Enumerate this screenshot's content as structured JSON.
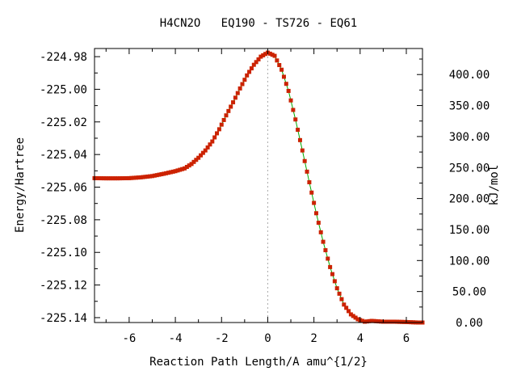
{
  "chart_data": {
    "type": "line",
    "title": "H4CN2O   EQ190 - TS726 - EQ61",
    "xlabel": "Reaction Path Length/A amu^{1/2}",
    "ylabel": "Energy/Hartree",
    "y2label": "kJ/mol",
    "xlim": [
      -7.5,
      6.7
    ],
    "ylim": [
      -225.143,
      -224.975
    ],
    "y2lim": [
      0,
      442
    ],
    "xticks": [
      -6,
      -4,
      -2,
      0,
      2,
      4,
      6
    ],
    "xtick_labels": [
      "-6",
      "-4",
      "-2",
      "0",
      "2",
      "4",
      "6"
    ],
    "yticks": [
      -224.98,
      -225.0,
      -225.02,
      -225.04,
      -225.06,
      -225.08,
      -225.1,
      -225.12,
      -225.14
    ],
    "ytick_labels": [
      "-224.98",
      "-225.00",
      "-225.02",
      "-225.04",
      "-225.06",
      "-225.08",
      "-225.10",
      "-225.12",
      "-225.14"
    ],
    "y2ticks": [
      0,
      50,
      100,
      150,
      200,
      250,
      300,
      350,
      400
    ],
    "y2tick_labels": [
      "0.00",
      "50.00",
      "100.00",
      "150.00",
      "200.00",
      "250.00",
      "300.00",
      "350.00",
      "400.00"
    ],
    "ts_marker_x": 0,
    "grid": false,
    "colors": {
      "line": "#00aa00",
      "marker": "#cc2200",
      "ts_line": "#aaaaaa"
    },
    "series": [
      {
        "x": [
          -7.5,
          -7.0,
          -6.5,
          -6.0,
          -5.5,
          -5.0,
          -4.5,
          -4.0,
          -3.6,
          -3.3,
          -3.0,
          -2.7,
          -2.4,
          -2.1,
          -1.8,
          -1.5,
          -1.2,
          -0.9,
          -0.6,
          -0.3,
          0.0,
          0.3,
          0.6,
          0.9,
          1.2,
          1.5,
          1.8,
          2.1,
          2.4,
          2.7,
          3.0,
          3.3,
          3.6,
          3.9,
          4.2,
          4.5,
          5.0,
          5.5,
          6.0,
          6.5,
          6.7
        ],
        "y": [
          -225.0545,
          -225.0546,
          -225.0546,
          -225.0545,
          -225.054,
          -225.0532,
          -225.0518,
          -225.0502,
          -225.0485,
          -225.0458,
          -225.042,
          -225.0375,
          -225.032,
          -225.0245,
          -225.016,
          -225.008,
          -224.9995,
          -224.9915,
          -224.985,
          -224.98,
          -224.9775,
          -224.9795,
          -224.988,
          -225.001,
          -225.0185,
          -225.0375,
          -225.057,
          -225.076,
          -225.0935,
          -225.109,
          -225.122,
          -225.132,
          -225.138,
          -225.141,
          -225.1425,
          -225.142,
          -225.1425,
          -225.1425,
          -225.1427,
          -225.143,
          -225.143
        ]
      }
    ]
  }
}
